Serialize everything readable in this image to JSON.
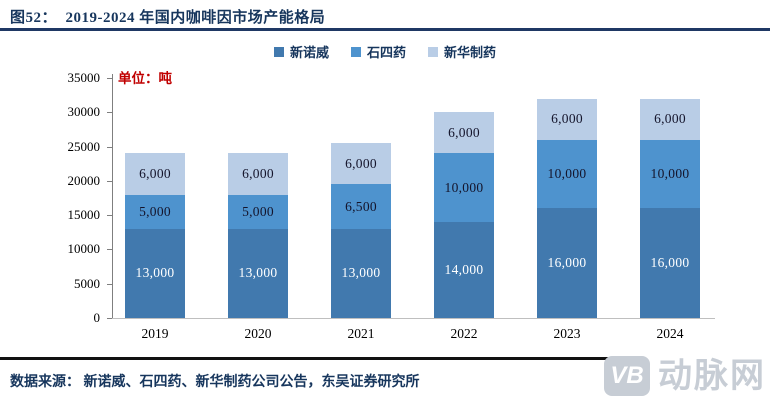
{
  "title": "图52：  2019-2024 年国内咖啡因市场产能格局",
  "unit_label": "单位：吨",
  "legend": [
    {
      "label": "新诺威",
      "color": "#4179AE"
    },
    {
      "label": "石四药",
      "color": "#4E93CE"
    },
    {
      "label": "新华制药",
      "color": "#B9CDE6"
    }
  ],
  "chart_data": {
    "type": "bar",
    "stacked": true,
    "categories": [
      "2019",
      "2020",
      "2021",
      "2022",
      "2023",
      "2024"
    ],
    "series": [
      {
        "name": "新诺威",
        "color": "#4179AE",
        "label_color": "#FFFFFF",
        "values": [
          13000,
          13000,
          13000,
          14000,
          16000,
          16000
        ]
      },
      {
        "name": "石四药",
        "color": "#4E93CE",
        "label_color": "#14142B",
        "values": [
          5000,
          5000,
          6500,
          10000,
          10000,
          10000
        ]
      },
      {
        "name": "新华制药",
        "color": "#B9CDE6",
        "label_color": "#14142B",
        "values": [
          6000,
          6000,
          6000,
          6000,
          6000,
          6000
        ]
      }
    ],
    "totals": [
      24000,
      24000,
      25500,
      30000,
      32000,
      32000
    ],
    "xlabel": "",
    "ylabel": "单位：吨",
    "ylim": [
      0,
      35000
    ],
    "yticks": [
      0,
      5000,
      10000,
      15000,
      20000,
      25000,
      30000,
      35000
    ],
    "grid": false,
    "legend_position": "top"
  },
  "source_note": "数据来源： 新诺威、石四药、新华制药公司公告，东吴证券研究所",
  "watermark": {
    "badge": "VB",
    "text": "动脉网"
  },
  "colors": {
    "title": "#17365D",
    "unit_label": "#C00000",
    "rule": "#1F3864",
    "watermark_gray": "#C7CDD5"
  }
}
